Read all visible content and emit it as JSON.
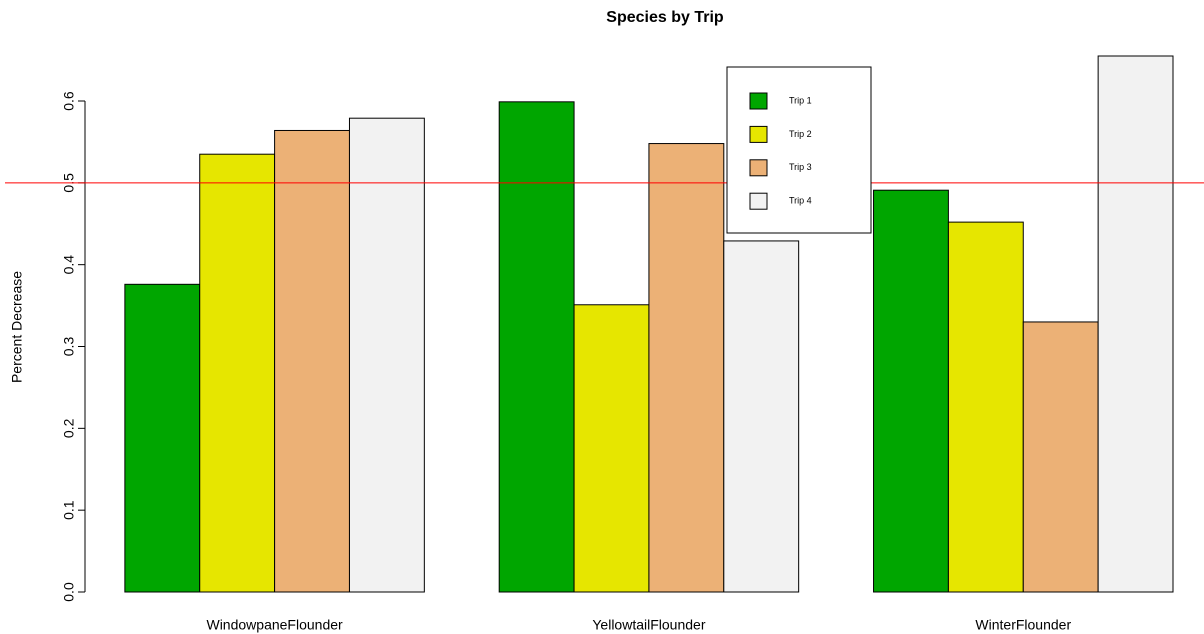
{
  "chart_data": {
    "type": "bar",
    "title": "Species by Trip",
    "ylabel": "Percent Decrease",
    "categories": [
      "WindowpaneFlounder",
      "YellowtailFlounder",
      "WinterFlounder"
    ],
    "series": [
      {
        "name": "Trip 1",
        "color": "#00a600",
        "values": [
          0.376,
          0.599,
          0.491
        ]
      },
      {
        "name": "Trip 2",
        "color": "#e6e600",
        "values": [
          0.535,
          0.351,
          0.452
        ]
      },
      {
        "name": "Trip 3",
        "color": "#ecb176",
        "values": [
          0.564,
          0.548,
          0.33
        ]
      },
      {
        "name": "Trip 4",
        "color": "#f2f2f2",
        "values": [
          0.579,
          0.429,
          0.655
        ]
      }
    ],
    "ylim": [
      0,
      0.655
    ],
    "yticks": [
      {
        "value": 0,
        "label": "0.0"
      },
      0.1,
      0.2,
      0.3,
      0.4,
      0.5,
      0.6
    ],
    "hline": {
      "value": 0.5,
      "color": "#ff0000"
    }
  }
}
